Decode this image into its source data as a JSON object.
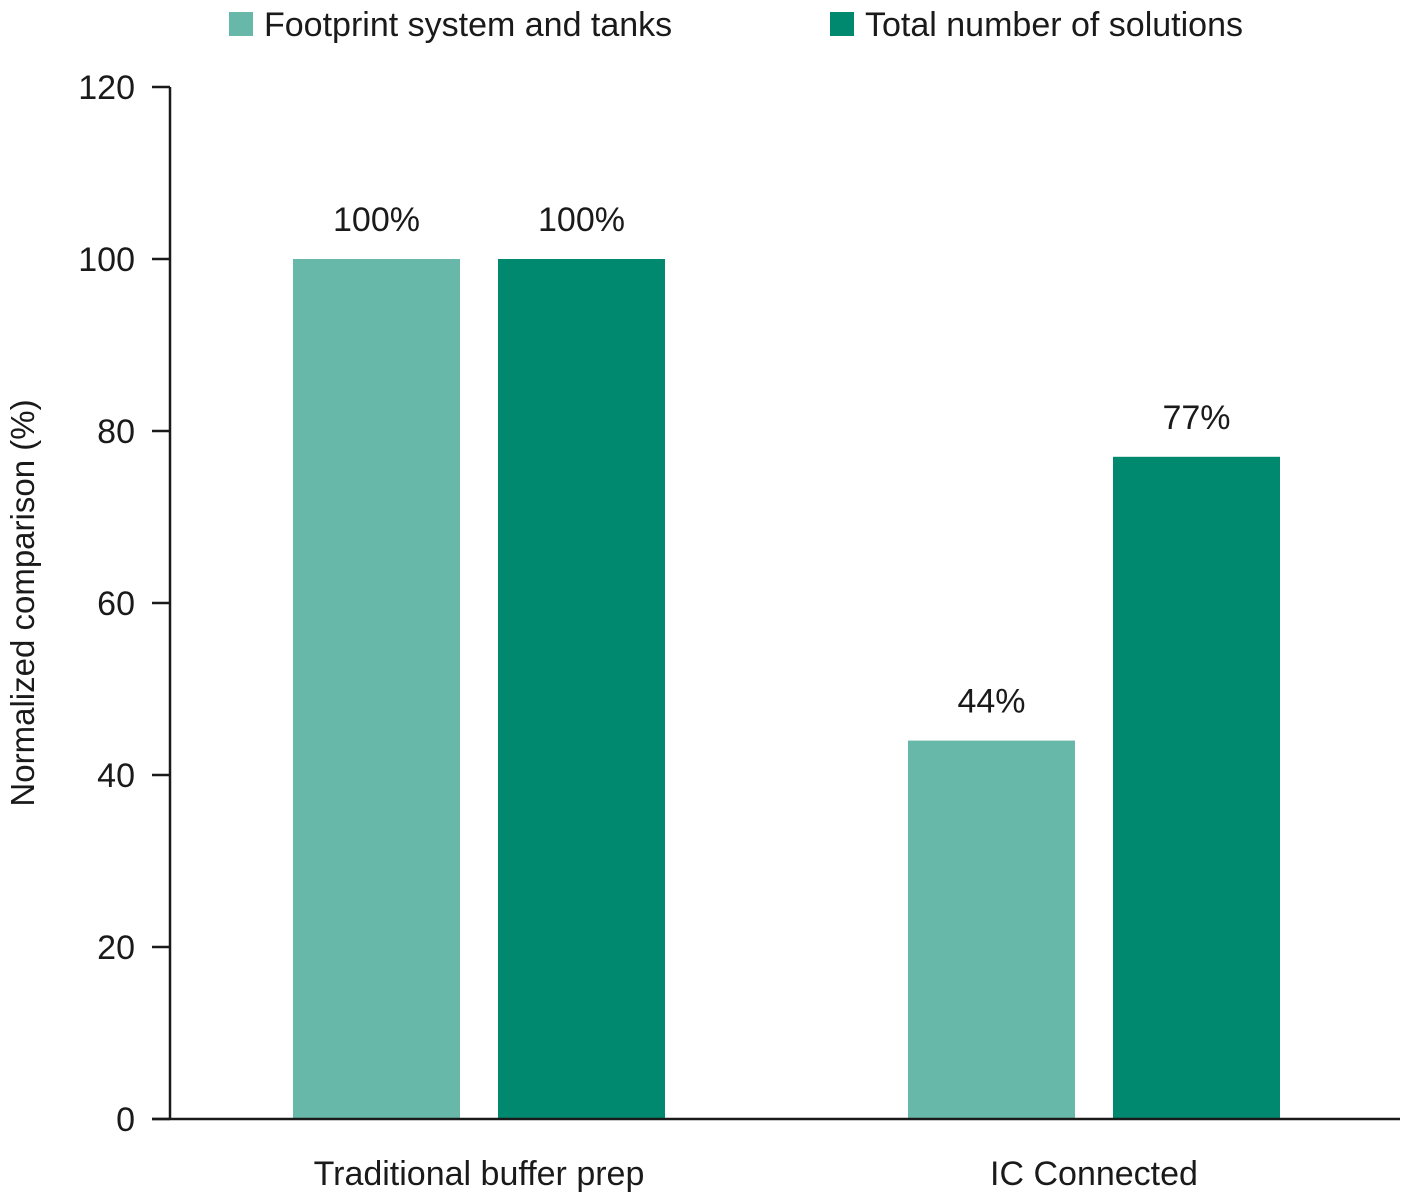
{
  "chart_data": {
    "type": "bar",
    "title": "",
    "xlabel": "",
    "ylabel": "Normalized comparison (%)",
    "ylim": [
      0,
      120
    ],
    "yticks": [
      0,
      20,
      40,
      60,
      80,
      100,
      120
    ],
    "grid": false,
    "legend_position": "top",
    "categories": [
      "Traditional buffer prep",
      "IC Connected"
    ],
    "series": [
      {
        "name": "Footprint system and tanks",
        "color": "#67b8a9",
        "values": [
          100,
          44
        ],
        "labels": [
          "100%",
          "44%"
        ]
      },
      {
        "name": "Total number of solutions",
        "color": "#00896f",
        "values": [
          100,
          77
        ],
        "labels": [
          "100%",
          "77%"
        ]
      }
    ]
  }
}
